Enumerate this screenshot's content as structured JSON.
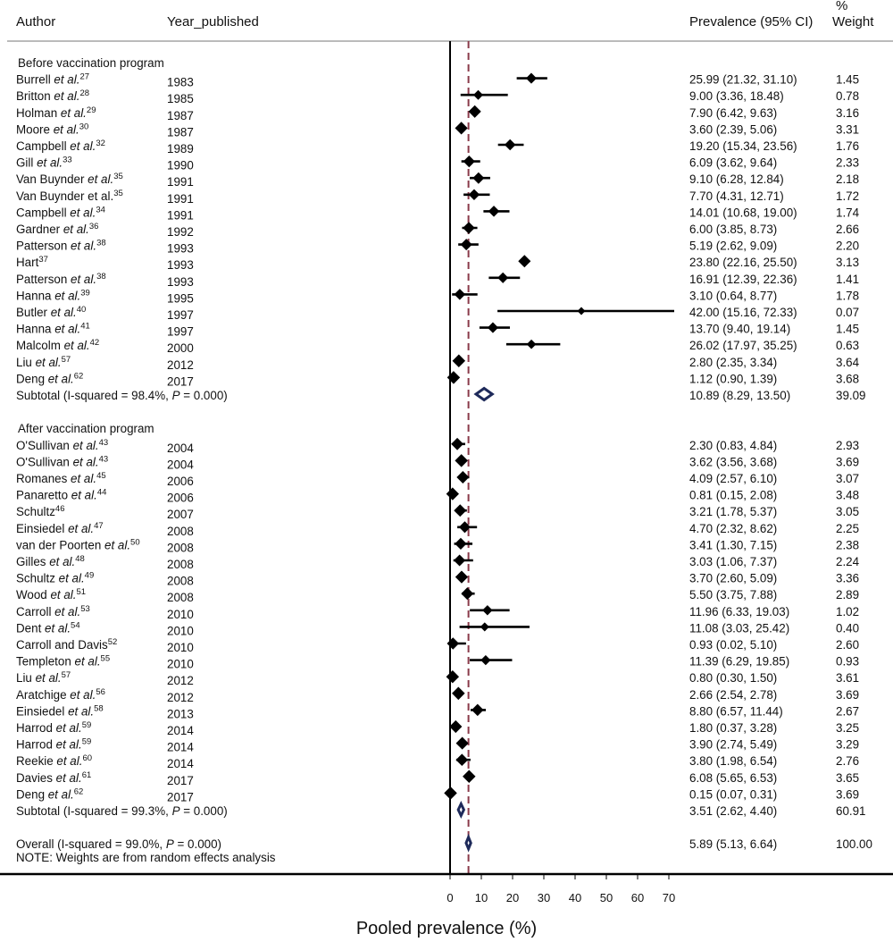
{
  "header": {
    "author": "Author",
    "year": "Year_published",
    "prev": "Prevalence (95% CI)",
    "weight_pct": "%",
    "weight": "Weight"
  },
  "note": "NOTE: Weights are from random effects analysis",
  "chart_data": {
    "type": "forest",
    "title": "",
    "xlabel": "Pooled prevalence (%)",
    "ylabel": "",
    "xlim": [
      0,
      70
    ],
    "xticks": [
      0,
      10,
      20,
      30,
      40,
      50,
      60,
      70
    ],
    "null_line": 0,
    "pooled_line": 5.89,
    "groups": [
      {
        "name": "Before vaccination program",
        "studies": [
          {
            "author": "Burrell",
            "etal": true,
            "ref": "27",
            "year": "1983",
            "est": 25.99,
            "lo": 21.32,
            "hi": 31.1,
            "ci": "25.99 (21.32, 31.10)",
            "weight": "1.45"
          },
          {
            "author": "Britton",
            "etal": true,
            "ref": "28",
            "year": "1985",
            "est": 9.0,
            "lo": 3.36,
            "hi": 18.48,
            "ci": "9.00 (3.36, 18.48)",
            "weight": "0.78"
          },
          {
            "author": "Holman",
            "etal": true,
            "ref": "29",
            "year": "1987",
            "est": 7.9,
            "lo": 6.42,
            "hi": 9.63,
            "ci": "7.90 (6.42, 9.63)",
            "weight": "3.16"
          },
          {
            "author": "Moore",
            "etal": true,
            "ref": "30",
            "year": "1987",
            "est": 3.6,
            "lo": 2.39,
            "hi": 5.06,
            "ci": "3.60 (2.39, 5.06)",
            "weight": "3.31"
          },
          {
            "author": "Campbell",
            "etal": true,
            "ref": "32",
            "year": "1989",
            "est": 19.2,
            "lo": 15.34,
            "hi": 23.56,
            "ci": "19.20 (15.34, 23.56)",
            "weight": "1.76"
          },
          {
            "author": "Gill",
            "etal": true,
            "ref": "33",
            "year": "1990",
            "est": 6.09,
            "lo": 3.62,
            "hi": 9.64,
            "ci": "6.09 (3.62, 9.64)",
            "weight": "2.33"
          },
          {
            "author": "Van Buynder",
            "etal": true,
            "ref": "35",
            "year": "1991",
            "est": 9.1,
            "lo": 6.28,
            "hi": 12.84,
            "ci": "9.10 (6.28, 12.84)",
            "weight": "2.18"
          },
          {
            "author": "Van Buynder et al.",
            "etal": false,
            "ref": "35",
            "year": "1991",
            "est": 7.7,
            "lo": 4.31,
            "hi": 12.71,
            "ci": "7.70 (4.31, 12.71)",
            "weight": "1.72"
          },
          {
            "author": "Campbell",
            "etal": true,
            "ref": "34",
            "year": "1991",
            "est": 14.01,
            "lo": 10.68,
            "hi": 19.0,
            "ci": "14.01 (10.68, 19.00)",
            "weight": "1.74"
          },
          {
            "author": "Gardner",
            "etal": true,
            "ref": "36",
            "year": "1992",
            "est": 6.0,
            "lo": 3.85,
            "hi": 8.73,
            "ci": "6.00 (3.85, 8.73)",
            "weight": "2.66"
          },
          {
            "author": "Patterson",
            "etal": true,
            "ref": "38",
            "year": "1993",
            "est": 5.19,
            "lo": 2.62,
            "hi": 9.09,
            "ci": "5.19 (2.62, 9.09)",
            "weight": "2.20"
          },
          {
            "author": "Hart",
            "etal": false,
            "ref": "37",
            "year": "1993",
            "est": 23.8,
            "lo": 22.16,
            "hi": 25.5,
            "ci": "23.80 (22.16, 25.50)",
            "weight": "3.13"
          },
          {
            "author": "Patterson",
            "etal": true,
            "ref": "38",
            "year": "1993",
            "est": 16.91,
            "lo": 12.39,
            "hi": 22.36,
            "ci": "16.91 (12.39, 22.36)",
            "weight": "1.41"
          },
          {
            "author": "Hanna",
            "etal": true,
            "ref": "39",
            "year": "1995",
            "est": 3.1,
            "lo": 0.64,
            "hi": 8.77,
            "ci": "3.10 (0.64, 8.77)",
            "weight": "1.78"
          },
          {
            "author": "Butler",
            "etal": true,
            "ref": "40",
            "year": "1997",
            "est": 42.0,
            "lo": 15.16,
            "hi": 72.33,
            "ci": "42.00 (15.16, 72.33)",
            "weight": "0.07"
          },
          {
            "author": "Hanna",
            "etal": true,
            "ref": "41",
            "year": "1997",
            "est": 13.7,
            "lo": 9.4,
            "hi": 19.14,
            "ci": "13.70 (9.40, 19.14)",
            "weight": "1.45"
          },
          {
            "author": "Malcolm",
            "etal": true,
            "ref": "42",
            "year": "2000",
            "est": 26.02,
            "lo": 17.97,
            "hi": 35.25,
            "ci": "26.02 (17.97, 35.25)",
            "weight": "0.63"
          },
          {
            "author": "Liu",
            "etal": true,
            "ref": "57",
            "year": "2012",
            "est": 2.8,
            "lo": 2.35,
            "hi": 3.34,
            "ci": "2.80 (2.35, 3.34)",
            "weight": "3.64"
          },
          {
            "author": "Deng",
            "etal": true,
            "ref": "62",
            "year": "2017",
            "est": 1.12,
            "lo": 0.9,
            "hi": 1.39,
            "ci": "1.12 (0.90, 1.39)",
            "weight": "3.68"
          }
        ],
        "subtotal": {
          "label_pre": "Subtotal (I-squared = 98.4%, ",
          "p": "P",
          "label_post": " = 0.000)",
          "est": 10.89,
          "lo": 8.29,
          "hi": 13.5,
          "ci": "10.89 (8.29, 13.50)",
          "weight": "39.09"
        }
      },
      {
        "name": "After vaccination program",
        "studies": [
          {
            "author": "O'Sullivan",
            "etal": true,
            "ref": "43",
            "year": "2004",
            "est": 2.3,
            "lo": 0.83,
            "hi": 4.84,
            "ci": "2.30 (0.83, 4.84)",
            "weight": "2.93"
          },
          {
            "author": "O'Sullivan",
            "etal": true,
            "ref": "43",
            "year": "2004",
            "est": 3.62,
            "lo": 3.56,
            "hi": 3.68,
            "ci": "3.62 (3.56, 3.68)",
            "weight": "3.69"
          },
          {
            "author": "Romanes",
            "etal": true,
            "ref": "45",
            "year": "2006",
            "est": 4.09,
            "lo": 2.57,
            "hi": 6.1,
            "ci": "4.09 (2.57, 6.10)",
            "weight": "3.07"
          },
          {
            "author": "Panaretto",
            "etal": true,
            "ref": "44",
            "year": "2006",
            "est": 0.81,
            "lo": 0.15,
            "hi": 2.08,
            "ci": "0.81 (0.15, 2.08)",
            "weight": "3.48"
          },
          {
            "author": "Schultz",
            "etal": false,
            "ref": "46",
            "year": "2007",
            "est": 3.21,
            "lo": 1.78,
            "hi": 5.37,
            "ci": "3.21 (1.78, 5.37)",
            "weight": "3.05"
          },
          {
            "author": "Einsiedel",
            "etal": true,
            "ref": "47",
            "year": "2008",
            "est": 4.7,
            "lo": 2.32,
            "hi": 8.62,
            "ci": "4.70 (2.32, 8.62)",
            "weight": "2.25"
          },
          {
            "author": "van der Poorten",
            "etal": true,
            "ref": "50",
            "year": "2008",
            "est": 3.41,
            "lo": 1.3,
            "hi": 7.15,
            "ci": "3.41 (1.30, 7.15)",
            "weight": "2.38"
          },
          {
            "author": "Gilles",
            "etal": true,
            "ref": "48",
            "year": "2008",
            "est": 3.03,
            "lo": 1.06,
            "hi": 7.37,
            "ci": "3.03 (1.06, 7.37)",
            "weight": "2.24"
          },
          {
            "author": "Schultz",
            "etal": true,
            "ref": "49",
            "year": "2008",
            "est": 3.7,
            "lo": 2.6,
            "hi": 5.09,
            "ci": "3.70 (2.60, 5.09)",
            "weight": "3.36"
          },
          {
            "author": "Wood",
            "etal": true,
            "ref": "51",
            "year": "2008",
            "est": 5.5,
            "lo": 3.75,
            "hi": 7.88,
            "ci": "5.50 (3.75, 7.88)",
            "weight": "2.89"
          },
          {
            "author": "Carroll",
            "etal": true,
            "ref": "53",
            "year": "2010",
            "est": 11.96,
            "lo": 6.33,
            "hi": 19.03,
            "ci": "11.96 (6.33, 19.03)",
            "weight": "1.02"
          },
          {
            "author": "Dent",
            "etal": true,
            "ref": "54",
            "year": "2010",
            "est": 11.08,
            "lo": 3.03,
            "hi": 25.42,
            "ci": "11.08 (3.03, 25.42)",
            "weight": "0.40"
          },
          {
            "author": "Carroll and Davis",
            "etal": false,
            "ref": "52",
            "year": "2010",
            "est": 0.93,
            "lo": 0.02,
            "hi": 5.1,
            "ci": "0.93 (0.02, 5.10)",
            "weight": "2.60"
          },
          {
            "author": "Templeton",
            "etal": true,
            "ref": "55",
            "year": "2010",
            "est": 11.39,
            "lo": 6.29,
            "hi": 19.85,
            "ci": "11.39 (6.29, 19.85)",
            "weight": "0.93"
          },
          {
            "author": "Liu",
            "etal": true,
            "ref": "57",
            "year": "2012",
            "est": 0.8,
            "lo": 0.3,
            "hi": 1.5,
            "ci": "0.80 (0.30, 1.50)",
            "weight": "3.61"
          },
          {
            "author": "Aratchige",
            "etal": true,
            "ref": "56",
            "year": "2012",
            "est": 2.66,
            "lo": 2.54,
            "hi": 2.78,
            "ci": "2.66 (2.54, 2.78)",
            "weight": "3.69"
          },
          {
            "author": "Einsiedel",
            "etal": true,
            "ref": "58",
            "year": "2013",
            "est": 8.8,
            "lo": 6.57,
            "hi": 11.44,
            "ci": "8.80 (6.57, 11.44)",
            "weight": "2.67"
          },
          {
            "author": "Harrod",
            "etal": true,
            "ref": "59",
            "year": "2014",
            "est": 1.8,
            "lo": 0.37,
            "hi": 3.28,
            "ci": "1.80 (0.37, 3.28)",
            "weight": "3.25"
          },
          {
            "author": "Harrod",
            "etal": true,
            "ref": "59",
            "year": "2014",
            "est": 3.9,
            "lo": 2.74,
            "hi": 5.49,
            "ci": "3.90 (2.74, 5.49)",
            "weight": "3.29"
          },
          {
            "author": "Reekie",
            "etal": true,
            "ref": "60",
            "year": "2014",
            "est": 3.8,
            "lo": 1.98,
            "hi": 6.54,
            "ci": "3.80 (1.98, 6.54)",
            "weight": "2.76"
          },
          {
            "author": "Davies",
            "etal": true,
            "ref": "61",
            "year": "2017",
            "est": 6.08,
            "lo": 5.65,
            "hi": 6.53,
            "ci": "6.08 (5.65, 6.53)",
            "weight": "3.65"
          },
          {
            "author": "Deng",
            "etal": true,
            "ref": "62",
            "year": "2017",
            "est": 0.15,
            "lo": 0.07,
            "hi": 0.31,
            "ci": "0.15 (0.07, 0.31)",
            "weight": "3.69"
          }
        ],
        "subtotal": {
          "label_pre": "Subtotal (I-squared = 99.3%, ",
          "p": "P",
          "label_post": " = 0.000)",
          "est": 3.51,
          "lo": 2.62,
          "hi": 4.4,
          "ci": "3.51 (2.62, 4.40)",
          "weight": "60.91"
        }
      }
    ],
    "overall": {
      "label_pre": "Overall (I-squared = 99.0%, ",
      "p": "P",
      "label_post": " = 0.000)",
      "est": 5.89,
      "lo": 5.13,
      "hi": 6.64,
      "ci": "5.89 (5.13, 6.64)",
      "weight": "100.00"
    }
  }
}
